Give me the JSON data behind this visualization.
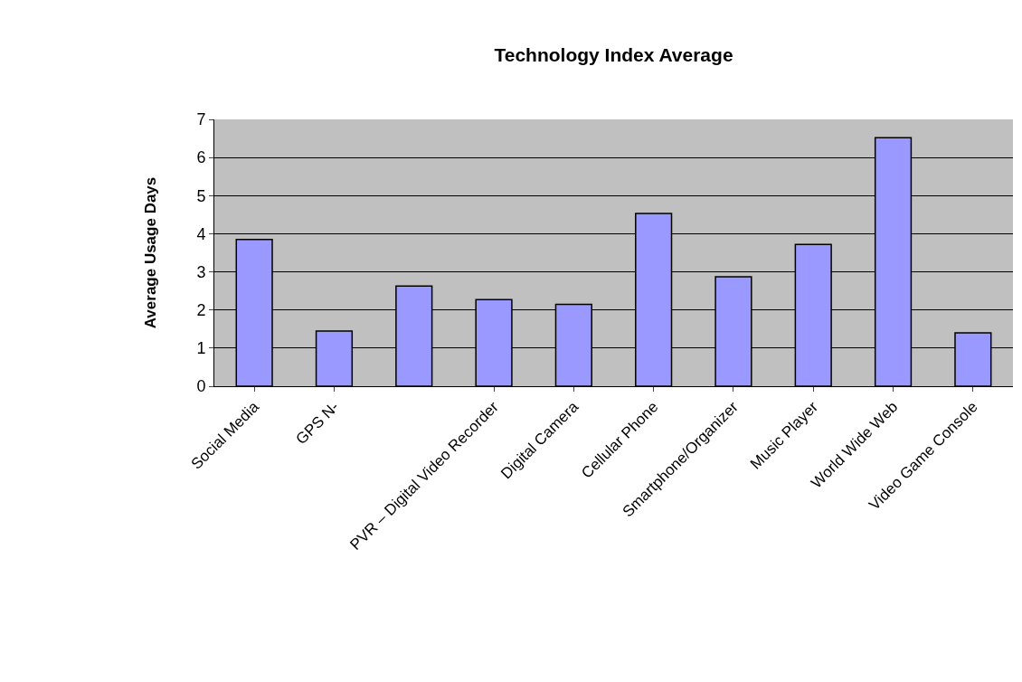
{
  "chart_data": {
    "type": "bar",
    "title": "Technology Index Average",
    "ylabel": "Average Usage Days",
    "categories": [
      "Social Media",
      "GPS N-",
      null,
      "PVR – Digital Video Recorder",
      "Digital Camera",
      "Cellular Phone",
      "Smartphone/Organizer",
      "Music Player",
      "World Wide Web",
      "Video Game Console"
    ],
    "values": [
      3.85,
      1.45,
      2.63,
      2.27,
      2.15,
      4.53,
      2.87,
      3.72,
      6.52,
      1.4
    ],
    "color": "#9999ff",
    "ylim": [
      0,
      7
    ],
    "yticks": [
      0,
      1,
      2,
      3,
      4,
      5,
      6,
      7
    ],
    "grid": "y"
  }
}
